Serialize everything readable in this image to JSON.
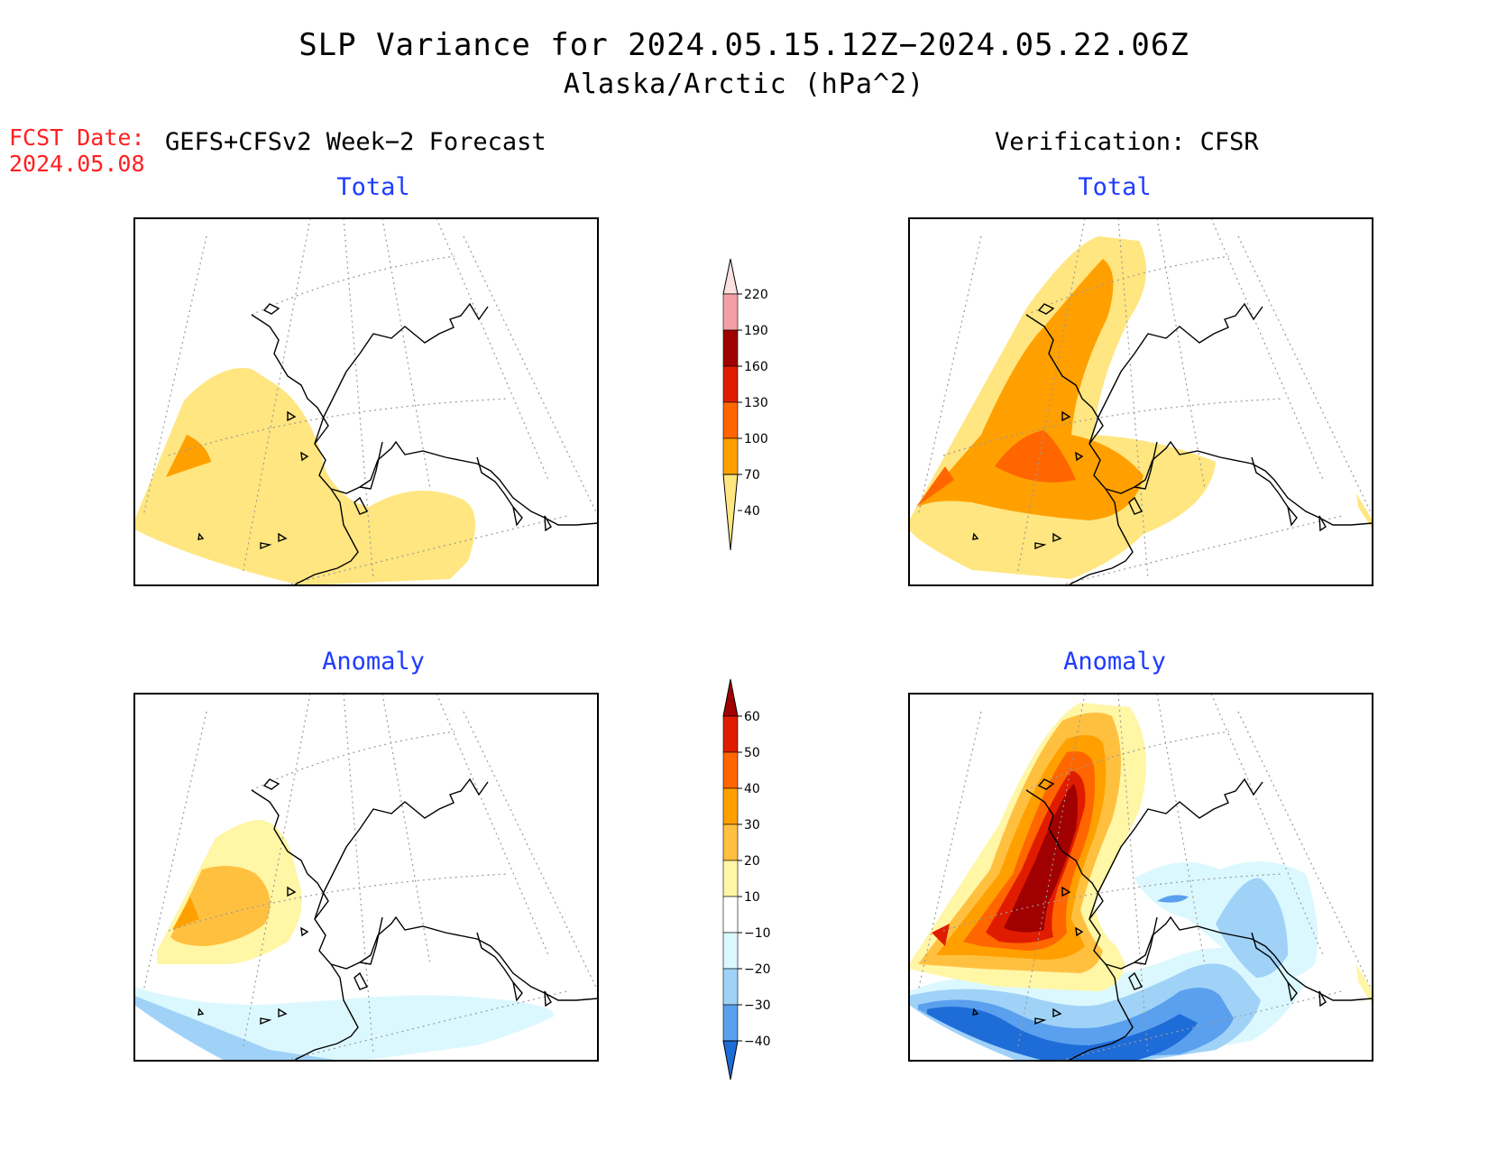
{
  "title": "SLP Variance for 2024.05.15.12Z−2024.05.22.06Z",
  "subtitle": "Alaska/Arctic (hPa^2)",
  "forecast_date": {
    "label": "FCST Date:",
    "value": "2024.05.08"
  },
  "left_column_heading": "GEFS+CFSv2 Week−2 Forecast",
  "right_column_heading": "Verification: CFSR",
  "panels": {
    "forecast_total": {
      "title": "Total"
    },
    "verification_total": {
      "title": "Total"
    },
    "forecast_anomaly": {
      "title": "Anomaly"
    },
    "verification_anomaly": {
      "title": "Anomaly"
    }
  },
  "colorbars": {
    "total": {
      "levels": [
        "220",
        "190",
        "160",
        "130",
        "100",
        "70",
        "40"
      ],
      "colors": [
        "#fde0e0",
        "#f2a0a4",
        "#a00000",
        "#e01c00",
        "#ff6600",
        "#ffa000",
        "#ffe680"
      ]
    },
    "anomaly": {
      "levels": [
        "60",
        "50",
        "40",
        "30",
        "20",
        "10",
        "−10",
        "−20",
        "−30",
        "−40"
      ],
      "colors": [
        "#a00000",
        "#e01c00",
        "#ff6600",
        "#ffa000",
        "#ffc040",
        "#fff6a6",
        "#ffffff",
        "#dcf8ff",
        "#a0d2f8",
        "#5aa0ee",
        "#1e6cd8"
      ]
    }
  },
  "colors": {
    "title": "#000000",
    "forecast_date": "#ff2020",
    "panel_title": "#1e3cff"
  }
}
